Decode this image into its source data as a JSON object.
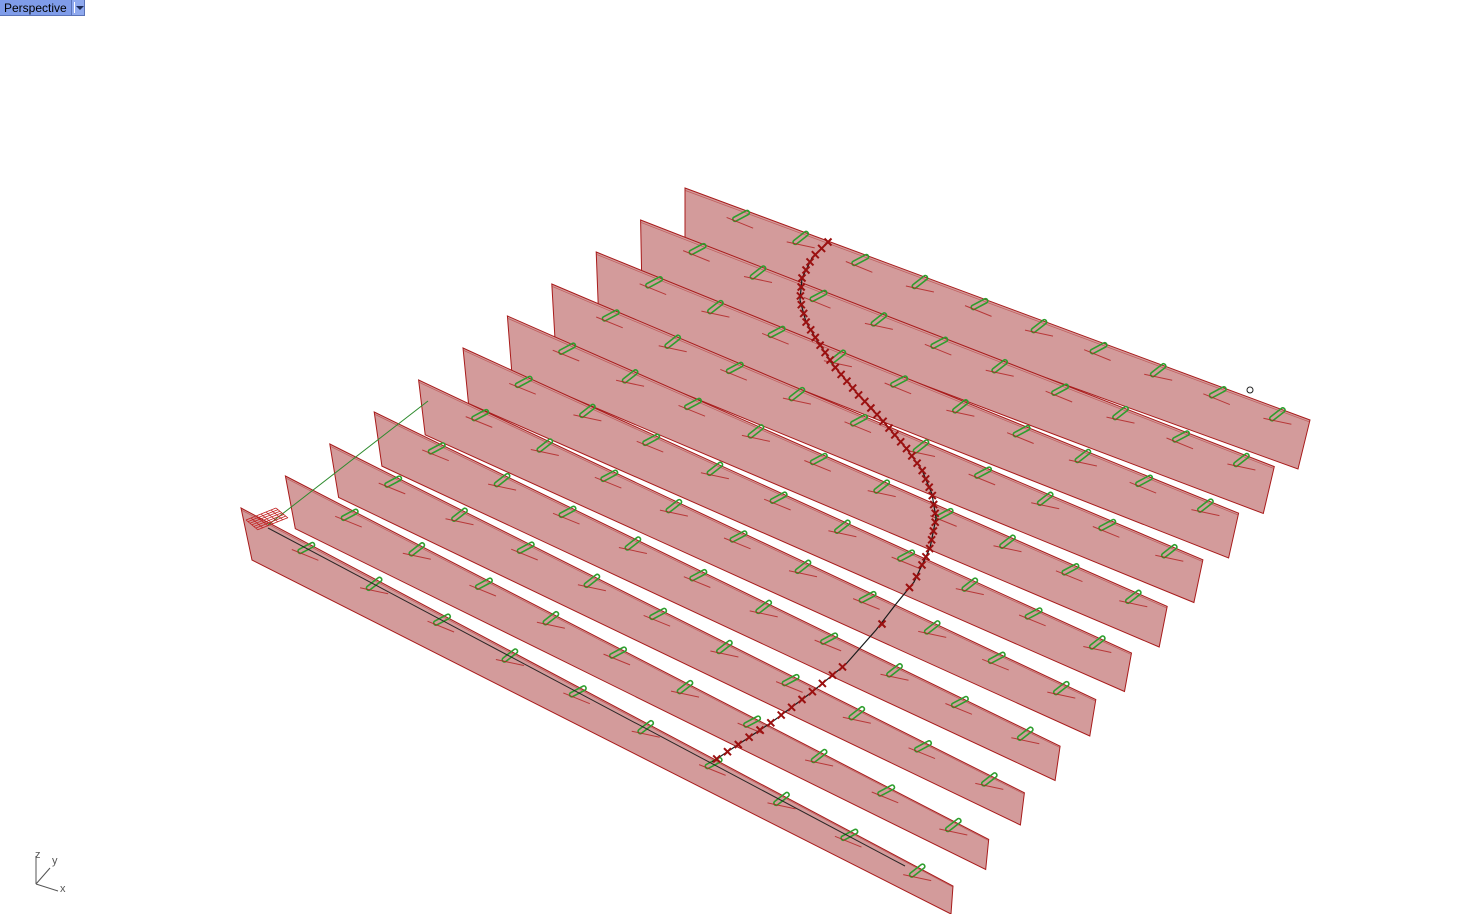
{
  "viewport": {
    "name": "Perspective",
    "dropdown_icon": "triangle-down-icon"
  },
  "scene": {
    "panel_count": 11,
    "panel_fill": "#d39b9b",
    "panel_stroke": "#a81b1b",
    "marker_green": "#2e9e2e",
    "marker_red": "#9b1010",
    "curve_color": "#1a1a1a"
  },
  "axes": {
    "z_label": "z",
    "y_label": "y",
    "x_label": "x"
  }
}
